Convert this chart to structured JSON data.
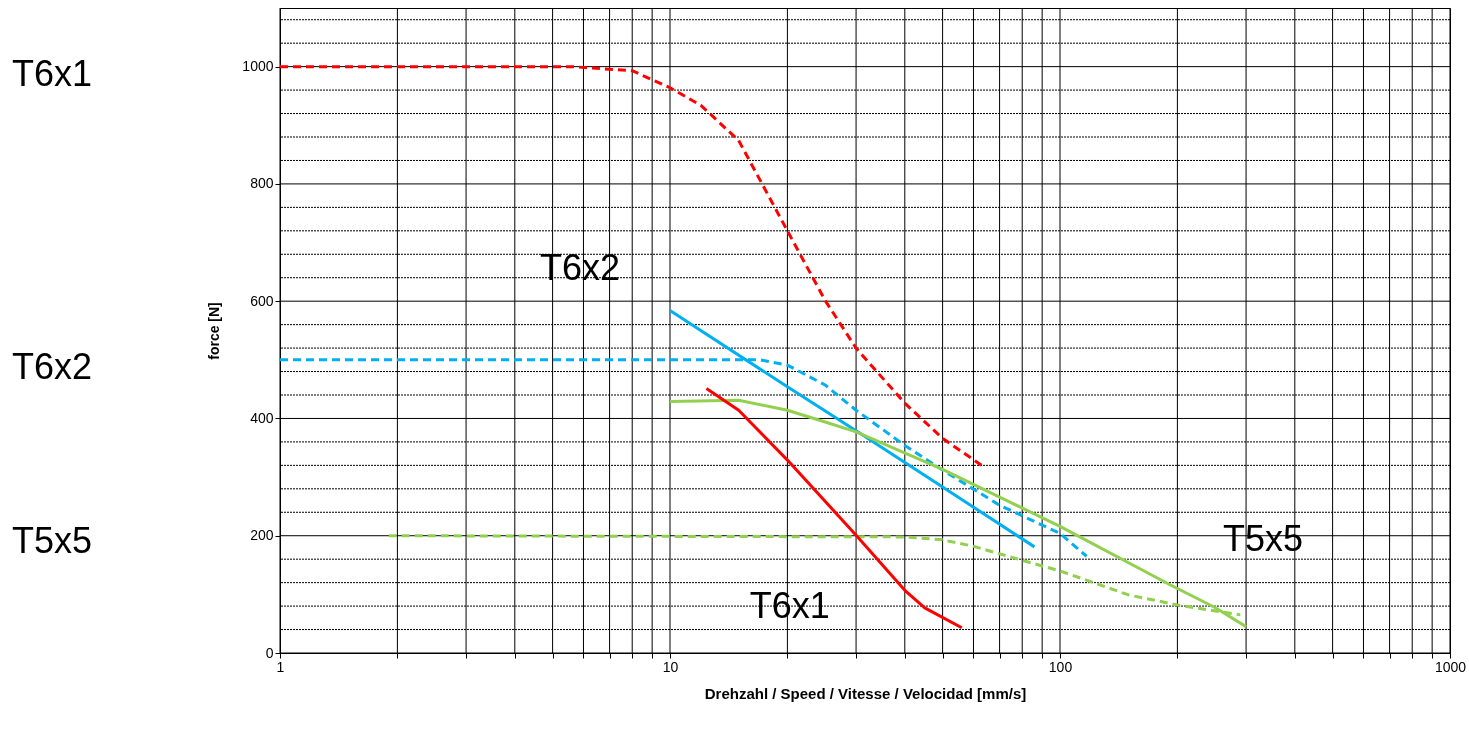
{
  "chart_data": {
    "type": "line",
    "xlabel": "Drehzahl / Speed / Vitesse / Velocidad  [mm/s]",
    "ylabel": "force [N]",
    "log": "x",
    "grid": true,
    "marker": "none",
    "xlim": [
      1,
      1000
    ],
    "ylim": [
      0,
      1100
    ],
    "xticks": [
      1,
      {
        "value": 2,
        "label": null
      },
      {
        "value": 3,
        "label": null
      },
      {
        "value": 4,
        "label": null
      },
      {
        "value": 5,
        "label": null
      },
      {
        "value": 6,
        "label": null
      },
      {
        "value": 7,
        "label": null
      },
      {
        "value": 8,
        "label": null
      },
      {
        "value": 9,
        "label": null
      },
      10,
      {
        "value": 20,
        "label": null
      },
      {
        "value": 30,
        "label": null
      },
      {
        "value": 40,
        "label": null
      },
      {
        "value": 50,
        "label": null
      },
      {
        "value": 60,
        "label": null
      },
      {
        "value": 70,
        "label": null
      },
      {
        "value": 80,
        "label": null
      },
      {
        "value": 90,
        "label": null
      },
      100,
      {
        "value": 200,
        "label": null
      },
      {
        "value": 300,
        "label": null
      },
      {
        "value": 400,
        "label": null
      },
      {
        "value": 500,
        "label": null
      },
      {
        "value": 600,
        "label": null
      },
      {
        "value": 700,
        "label": null
      },
      {
        "value": 800,
        "label": null
      },
      {
        "value": 900,
        "label": null
      },
      1000
    ],
    "yticks": [
      0,
      {
        "value": 40,
        "label": null
      },
      {
        "value": 80,
        "label": null
      },
      {
        "value": 120,
        "label": null
      },
      {
        "value": 160,
        "label": null
      },
      200,
      {
        "value": 240,
        "label": null
      },
      {
        "value": 280,
        "label": null
      },
      {
        "value": 320,
        "label": null
      },
      {
        "value": 360,
        "label": null
      },
      400,
      {
        "value": 440,
        "label": null
      },
      {
        "value": 480,
        "label": null
      },
      {
        "value": 520,
        "label": null
      },
      {
        "value": 560,
        "label": null
      },
      600,
      {
        "value": 640,
        "label": null
      },
      {
        "value": 680,
        "label": null
      },
      {
        "value": 720,
        "label": null
      },
      {
        "value": 760,
        "label": null
      },
      800,
      {
        "value": 840,
        "label": null
      },
      {
        "value": 880,
        "label": null
      },
      {
        "value": 920,
        "label": null
      },
      {
        "value": 960,
        "label": null
      },
      1000,
      {
        "value": 1040,
        "label": null
      },
      {
        "value": 1080,
        "label": null
      }
    ],
    "series": [
      {
        "color": "#ff0000",
        "line_style": "dashed",
        "x": [
          1,
          5.6,
          8,
          10,
          12,
          15,
          20,
          25,
          30,
          40,
          50,
          63
        ],
        "values": [
          1000,
          1000,
          993,
          964,
          934,
          874,
          720,
          601,
          520,
          426,
          366,
          320
        ]
      },
      {
        "color": "#00b0f0",
        "line_style": "dashed",
        "x": [
          1,
          17,
          20,
          25,
          30,
          40,
          50,
          70,
          100,
          117
        ],
        "values": [
          500,
          500,
          491,
          457,
          414,
          354,
          312,
          252,
          204,
          165
        ]
      },
      {
        "color": "#92d050",
        "line_style": "dashed",
        "x": [
          1.9,
          40,
          50,
          60,
          80,
          100,
          150,
          200,
          290
        ],
        "values": [
          200,
          198,
          193,
          182,
          158,
          140,
          99,
          82,
          65
        ]
      },
      {
        "color": "#00b0f0",
        "line_style": "solid",
        "x": [
          10,
          20,
          30,
          50,
          86
        ],
        "values": [
          584,
          454,
          379,
          283,
          181
        ]
      },
      {
        "color": "#92d050",
        "line_style": "solid",
        "x": [
          10,
          15,
          20,
          25,
          30,
          50,
          70,
          100,
          192,
          249,
          300
        ],
        "values": [
          429,
          431,
          414,
          394,
          377,
          313,
          266,
          216,
          116,
          78,
          45
        ]
      },
      {
        "color": "#ff0000",
        "line_style": "solid",
        "x": [
          12.4,
          15,
          20,
          30,
          40,
          45,
          56
        ],
        "values": [
          451,
          414,
          329,
          201,
          107,
          77,
          43
        ]
      }
    ],
    "annotations": [
      "T6x1",
      "T6x2",
      "T5x5",
      "T6x2",
      "T6x1",
      "T5x5"
    ]
  }
}
